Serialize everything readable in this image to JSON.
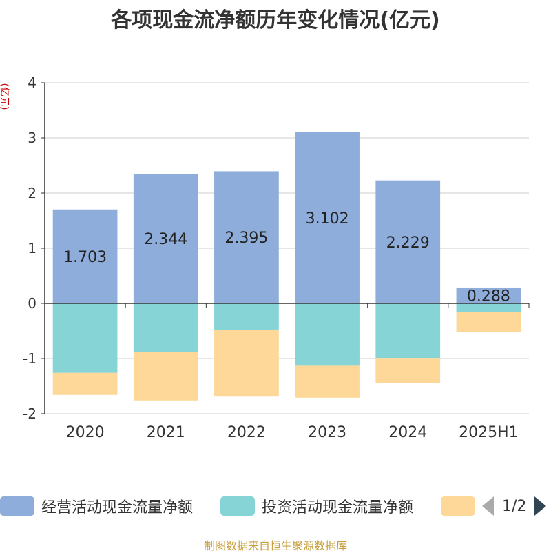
{
  "title": "各项现金流净额历年变化情况(亿元)",
  "unit_label": "(亿元)",
  "source": "制图数据来自恒生聚源数据库",
  "legend": {
    "items": [
      {
        "label": "经营活动现金流量净额",
        "color": "#8eaddb"
      },
      {
        "label": "投资活动现金流量净额",
        "color": "#86d4d6"
      },
      {
        "label": "",
        "color": "#fed898"
      }
    ],
    "page": "1/2"
  },
  "chart_data": {
    "type": "bar",
    "stacked": true,
    "categories": [
      "2020",
      "2021",
      "2022",
      "2023",
      "2024",
      "2025H1"
    ],
    "ylim": [
      -2,
      4
    ],
    "yticks": [
      -2,
      -1,
      0,
      1,
      2,
      3,
      4
    ],
    "ytick_labels": [
      "-2",
      "-1",
      "0",
      "1",
      "2",
      "3",
      "4"
    ],
    "grid": true,
    "legend_position": "bottom",
    "series": [
      {
        "name": "经营活动现金流量净额",
        "color": "#8eaddb",
        "values": [
          1.703,
          2.344,
          2.395,
          3.102,
          2.229,
          0.288
        ],
        "labels": [
          "1.703",
          "2.344",
          "2.395",
          "3.102",
          "2.229",
          "0.288"
        ]
      },
      {
        "name": "投资活动现金流量净额",
        "color": "#86d4d6",
        "values": [
          -1.26,
          -0.88,
          -0.48,
          -1.13,
          -0.99,
          -0.16
        ]
      },
      {
        "name": "",
        "color": "#fed898",
        "values": [
          -0.4,
          -0.88,
          -1.21,
          -0.58,
          -0.45,
          -0.36
        ]
      }
    ]
  }
}
